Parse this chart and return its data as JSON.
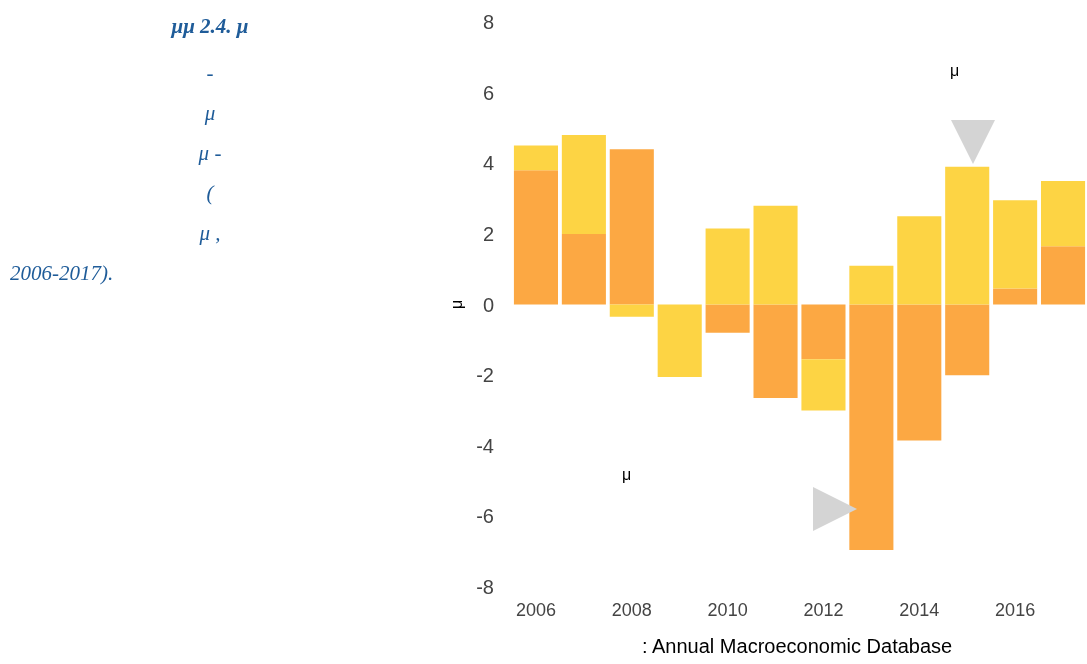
{
  "chart_data": {
    "type": "bar",
    "stacked": true,
    "title": "μμ 2.4. μ",
    "subtitle": "-\nμ\nμ -\n(\nμ ,\n2006-2017).",
    "ylabel": "μ",
    "categories": [
      "2006",
      null,
      "2008",
      null,
      "2010",
      null,
      "2012",
      null,
      "2014",
      null,
      "2016",
      null
    ],
    "series": [
      {
        "color": "#fca843",
        "values": [
          3.8,
          2.0,
          4.4,
          0,
          -0.8,
          -2.65,
          -1.55,
          -6.95,
          -3.85,
          -2.0,
          0.45,
          1.65
        ]
      },
      {
        "color": "#fdd444",
        "values": [
          0.7,
          2.8,
          -0.35,
          -2.05,
          2.15,
          2.8,
          -1.45,
          1.1,
          2.5,
          3.9,
          2.5,
          1.85
        ]
      }
    ],
    "ylim": [
      -8,
      8
    ],
    "yticks": [
      -8,
      -6,
      -4,
      -2,
      0,
      2,
      4,
      6,
      8
    ],
    "grid": false,
    "annotations": [
      "μ",
      "μ",
      ": Annual Macroeconomic Database"
    ]
  }
}
